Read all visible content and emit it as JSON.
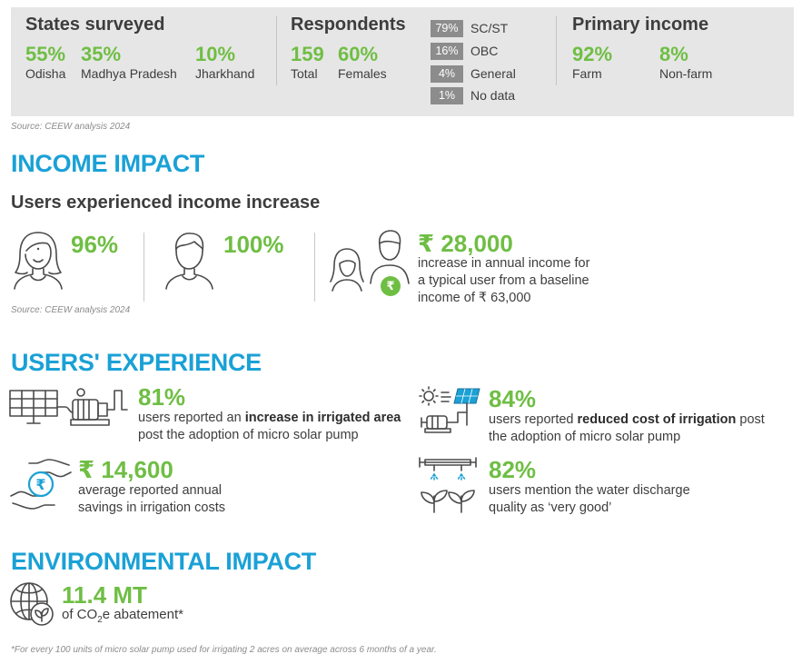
{
  "summary": {
    "states": {
      "heading": "States surveyed",
      "items": [
        {
          "value": "55%",
          "label": "Odisha"
        },
        {
          "value": "35%",
          "label": "Madhya Pradesh"
        },
        {
          "value": "10%",
          "label": "Jharkhand"
        }
      ]
    },
    "respondents": {
      "heading": "Respondents",
      "items": [
        {
          "value": "159",
          "label": "Total"
        },
        {
          "value": "60%",
          "label": "Females"
        }
      ],
      "caste": [
        {
          "value": "79%",
          "label": "SC/ST"
        },
        {
          "value": "16%",
          "label": "OBC"
        },
        {
          "value": "4%",
          "label": "General"
        },
        {
          "value": "1%",
          "label": "No data"
        }
      ]
    },
    "income": {
      "heading": "Primary income",
      "items": [
        {
          "value": "92%",
          "label": "Farm"
        },
        {
          "value": "8%",
          "label": "Non-farm"
        }
      ]
    },
    "source": "Source: CEEW analysis 2024"
  },
  "income_impact": {
    "title": "INCOME IMPACT",
    "subtitle": "Users experienced income increase",
    "female_pct": "96%",
    "male_pct": "100%",
    "amount": "₹ 28,000",
    "description_lines": [
      "increase in annual income for",
      "a typical user from a baseline",
      "income of ₹ 63,000"
    ],
    "rupee_symbol": "₹",
    "source": "Source: CEEW analysis 2024"
  },
  "users_experience": {
    "title": "USERS' EXPERIENCE",
    "irrigated": {
      "value": "81%",
      "line1_pre": "users reported an ",
      "line1_bold": "increase in irrigated area",
      "line2": "post the adoption of micro solar pump"
    },
    "cost": {
      "value": "84%",
      "line1_pre": "users reported ",
      "line1_bold": "reduced cost of irrigation",
      "line1_post": " post",
      "line2": "the adoption of micro solar pump"
    },
    "savings": {
      "value": "₹ 14,600",
      "line1": "average reported annual",
      "line2": "savings in irrigation costs",
      "rupee_symbol": "₹"
    },
    "quality": {
      "value": "82%",
      "line1": "users mention the water discharge",
      "line2": "quality as ‘very good’"
    }
  },
  "environmental_impact": {
    "title": "ENVIRONMENTAL IMPACT",
    "value": "11.4 MT",
    "text_pre": "of CO",
    "text_sub": "2",
    "text_post": "e abatement*"
  },
  "footnote": "*For every 100 units of micro solar pump used for irrigating 2 acres on average across 6 months of a year.",
  "colors": {
    "green": "#6fbe44",
    "blue": "#1aa1d6",
    "grey_panel": "#e6e6e6",
    "grey_box": "#8c8c8c"
  }
}
